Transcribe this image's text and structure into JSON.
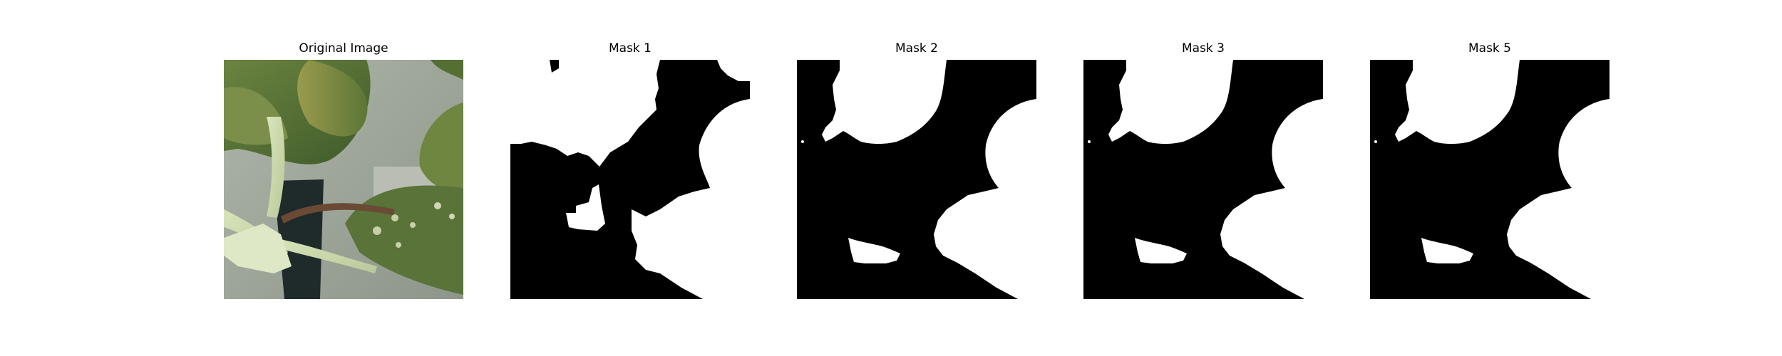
{
  "figure": {
    "panels": [
      {
        "title": "Original Image",
        "kind": "photo",
        "subject": "plant leaves and stems"
      },
      {
        "title": "Mask 1",
        "kind": "binary-mask"
      },
      {
        "title": "Mask 2",
        "kind": "binary-mask"
      },
      {
        "title": "Mask 3",
        "kind": "binary-mask"
      },
      {
        "title": "Mask 5",
        "kind": "binary-mask"
      }
    ]
  },
  "colors": {
    "background": "#ffffff",
    "mask_foreground": "#ffffff",
    "mask_background": "#000000",
    "leaf_dark": "#4f6b34",
    "leaf_light": "#8f9a52",
    "stem": "#cfdcae",
    "wall": "#9fa79c"
  }
}
